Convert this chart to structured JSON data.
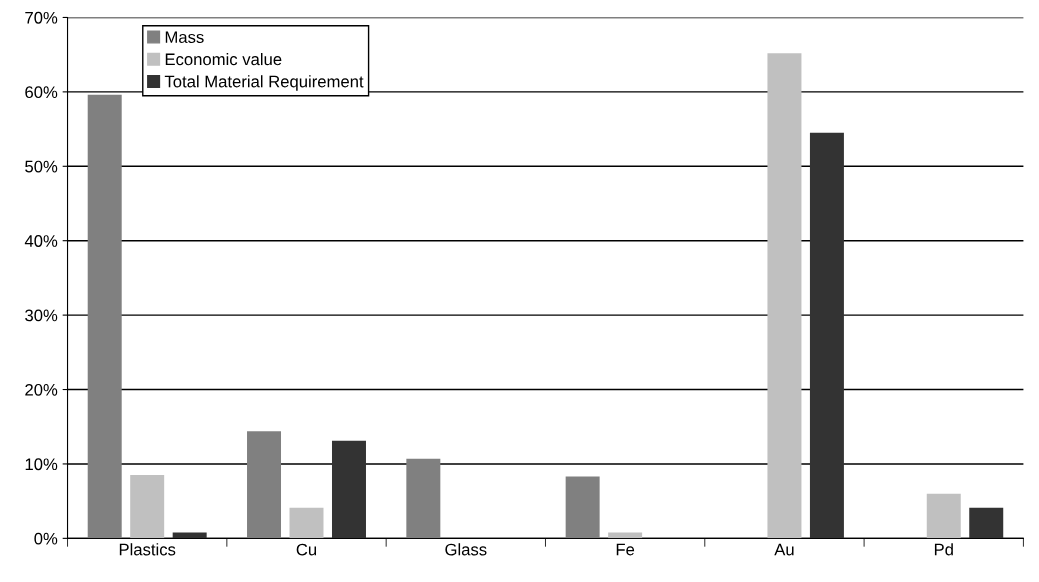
{
  "chart_data": {
    "type": "bar",
    "categories": [
      "Plastics",
      "Cu",
      "Glass",
      "Fe",
      "Au",
      "Pd"
    ],
    "series": [
      {
        "name": "Mass",
        "color": "#808080",
        "values": [
          59.6,
          14.4,
          10.7,
          8.3,
          null,
          null
        ]
      },
      {
        "name": "Economic value",
        "color": "#c0c0c0",
        "values": [
          8.5,
          4.1,
          null,
          0.8,
          65.2,
          6.0
        ]
      },
      {
        "name": "Total Material Requirement",
        "color": "#333333",
        "values": [
          0.8,
          13.1,
          null,
          null,
          54.5,
          4.1
        ]
      }
    ],
    "ylim": [
      0,
      70
    ],
    "yticks": [
      {
        "value": 0,
        "label": "0%"
      },
      {
        "value": 10,
        "label": "10%"
      },
      {
        "value": 20,
        "label": "20%"
      },
      {
        "value": 30,
        "label": "30%"
      },
      {
        "value": 40,
        "label": "40%"
      },
      {
        "value": 50,
        "label": "50%"
      },
      {
        "value": 60,
        "label": "60%"
      },
      {
        "value": 70,
        "label": "70%"
      }
    ],
    "grid": "y",
    "legend": "top left"
  }
}
